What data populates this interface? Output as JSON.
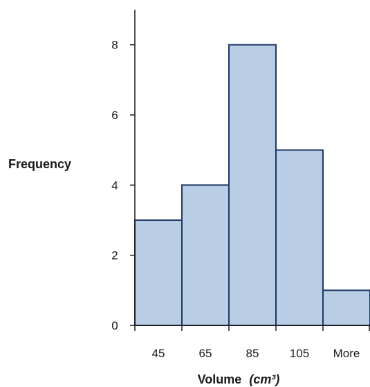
{
  "chart_data": {
    "type": "bar",
    "title": "",
    "categories": [
      "45",
      "65",
      "85",
      "105",
      "More"
    ],
    "values": [
      3,
      4,
      8,
      5,
      1
    ],
    "xlabel": "Volume",
    "xlabel_unit": "(cm³)",
    "ylabel": "Frequency",
    "ylim": [
      0,
      9
    ],
    "yticks": [
      0,
      2,
      4,
      6,
      8
    ],
    "grid": false,
    "legend": "none",
    "bar_fill": "#b9cde5",
    "bar_stroke": "#1f3864",
    "axis_color": "#1a1a1a"
  }
}
